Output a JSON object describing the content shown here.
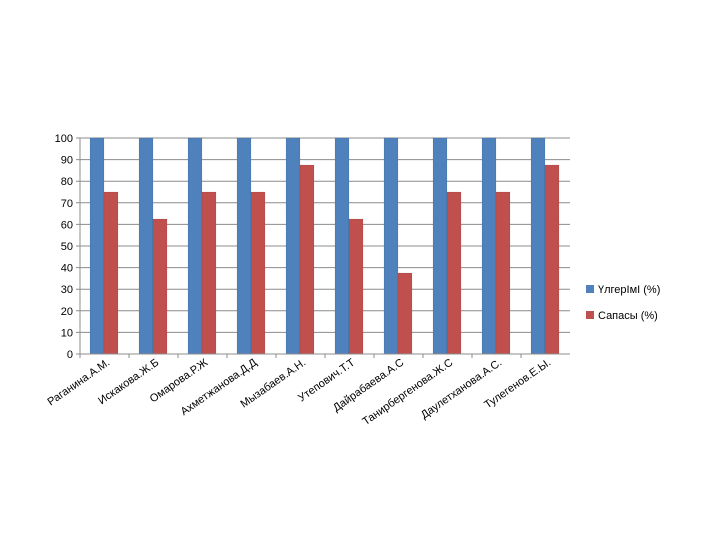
{
  "chart_data": {
    "type": "bar",
    "categories": [
      "Раганина.А.М.",
      "Искакова.Ж.Б",
      "Омарова.Р.Ж",
      "Ахметжанова.Д.Д",
      "Мызабаев.А.Н.",
      "Утепович.Т.Т",
      "Дайрабаева.А.С",
      "Танирбергенова.Ж.С",
      "Даулетханова.А.С.",
      "Тулегенов.Е.Ы."
    ],
    "series": [
      {
        "name": "ҮлгерІмІ (%)",
        "color": "#4F81BD",
        "values": [
          100,
          100,
          100,
          100,
          100,
          100,
          100,
          100,
          100,
          100
        ]
      },
      {
        "name": "Сапасы (%)",
        "color": "#C0504D",
        "values": [
          75,
          62.5,
          75,
          75,
          87.5,
          62.5,
          37.5,
          75,
          75,
          87.5
        ]
      }
    ],
    "ylim": [
      0,
      100
    ],
    "yticks": [
      0,
      10,
      20,
      30,
      40,
      50,
      60,
      70,
      80,
      90,
      100
    ],
    "grid": true,
    "legend": "right",
    "title": "",
    "xlabel": "",
    "ylabel": ""
  }
}
